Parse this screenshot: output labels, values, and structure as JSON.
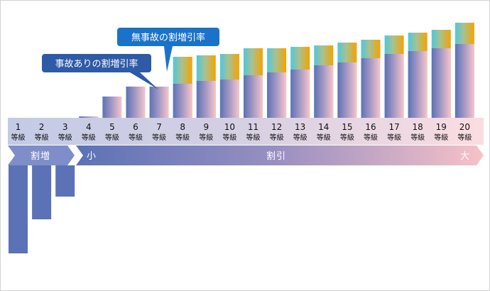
{
  "chart_data": {
    "type": "bar",
    "categories": [
      "1",
      "2",
      "3",
      "4",
      "5",
      "6",
      "7",
      "8",
      "9",
      "10",
      "11",
      "12",
      "13",
      "14",
      "15",
      "16",
      "17",
      "18",
      "19",
      "20"
    ],
    "category_unit": "等級",
    "series": [
      {
        "name": "無事故の割増引率",
        "values": [
          null,
          null,
          null,
          null,
          null,
          null,
          null,
          43,
          44,
          45,
          49,
          49,
          50,
          51,
          53,
          55,
          58,
          60,
          62,
          67
        ]
      },
      {
        "name": "事故ありの割増引率",
        "values": [
          -62,
          -38,
          -22,
          1,
          15,
          22,
          22,
          24,
          26,
          27,
          30,
          32,
          34,
          37,
          39,
          42,
          45,
          47,
          49,
          52
        ]
      }
    ],
    "colors": {
      "no_accident_gradient": [
        "#4fc7dd",
        "#a9c190",
        "#f5a300"
      ],
      "with_accident_gradient": [
        "#5b72b6",
        "#a095c3",
        "#f6c6cc"
      ],
      "surcharge_bars": "#5b72b6",
      "callout_no_accident": "#1a73c9",
      "callout_with_accident": "#2e5aa6"
    },
    "annotations": {
      "callout_no_accident": "無事故の割増引率",
      "callout_with_accident": "事故ありの割増引率"
    },
    "band": {
      "surcharge_label": "割増",
      "discount_label": "割引",
      "small_label": "小",
      "large_label": "大"
    }
  }
}
